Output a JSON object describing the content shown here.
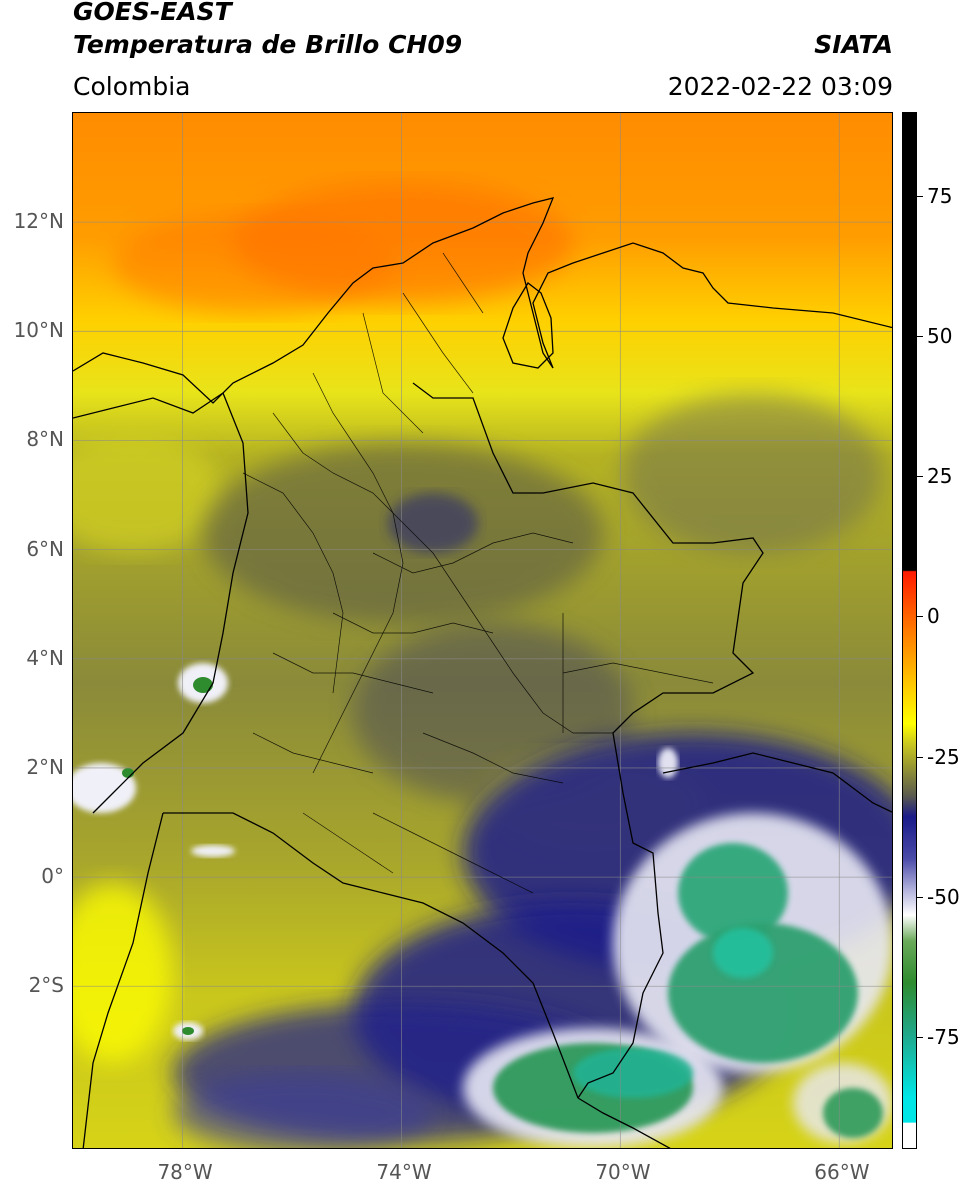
{
  "header": {
    "title_line1": "GOES-EAST",
    "title_line2": "Temperatura de Brillo CH09",
    "source": "SIATA",
    "region": "Colombia",
    "datetime": "2022-02-22 03:09"
  },
  "map": {
    "lon_range": [
      -80,
      -65
    ],
    "lat_range": [
      -5,
      14
    ],
    "lon_ticks": [
      {
        "value": -78,
        "label": "78°W"
      },
      {
        "value": -74,
        "label": "74°W"
      },
      {
        "value": -70,
        "label": "70°W"
      },
      {
        "value": -66,
        "label": "66°W"
      }
    ],
    "lat_ticks": [
      {
        "value": 12,
        "label": "12°N"
      },
      {
        "value": 10,
        "label": "10°N"
      },
      {
        "value": 8,
        "label": "8°N"
      },
      {
        "value": 6,
        "label": "6°N"
      },
      {
        "value": 4,
        "label": "4°N"
      },
      {
        "value": 2,
        "label": "2°N"
      },
      {
        "value": 0,
        "label": "0°"
      },
      {
        "value": -2,
        "label": "2°S"
      }
    ],
    "gridlines": true
  },
  "colorbar": {
    "range": [
      -95,
      90
    ],
    "ticks": [
      {
        "value": 75,
        "label": "75"
      },
      {
        "value": 50,
        "label": "50"
      },
      {
        "value": 25,
        "label": "25"
      },
      {
        "value": 0,
        "label": "0"
      },
      {
        "value": -25,
        "label": "-25"
      },
      {
        "value": -50,
        "label": "-50"
      },
      {
        "value": -75,
        "label": "-75"
      }
    ]
  },
  "colors": {
    "warm_top": "#ff7a00",
    "yellow": "#ffff00",
    "olive": "#b5b322",
    "gray": "#5a5a50",
    "navy": "#1a1a8a",
    "white": "#ffffff",
    "green": "#2e8b2e",
    "teal": "#20b28f",
    "cyan": "#00e5e5",
    "red": "#ff1a00",
    "black": "#000000"
  }
}
